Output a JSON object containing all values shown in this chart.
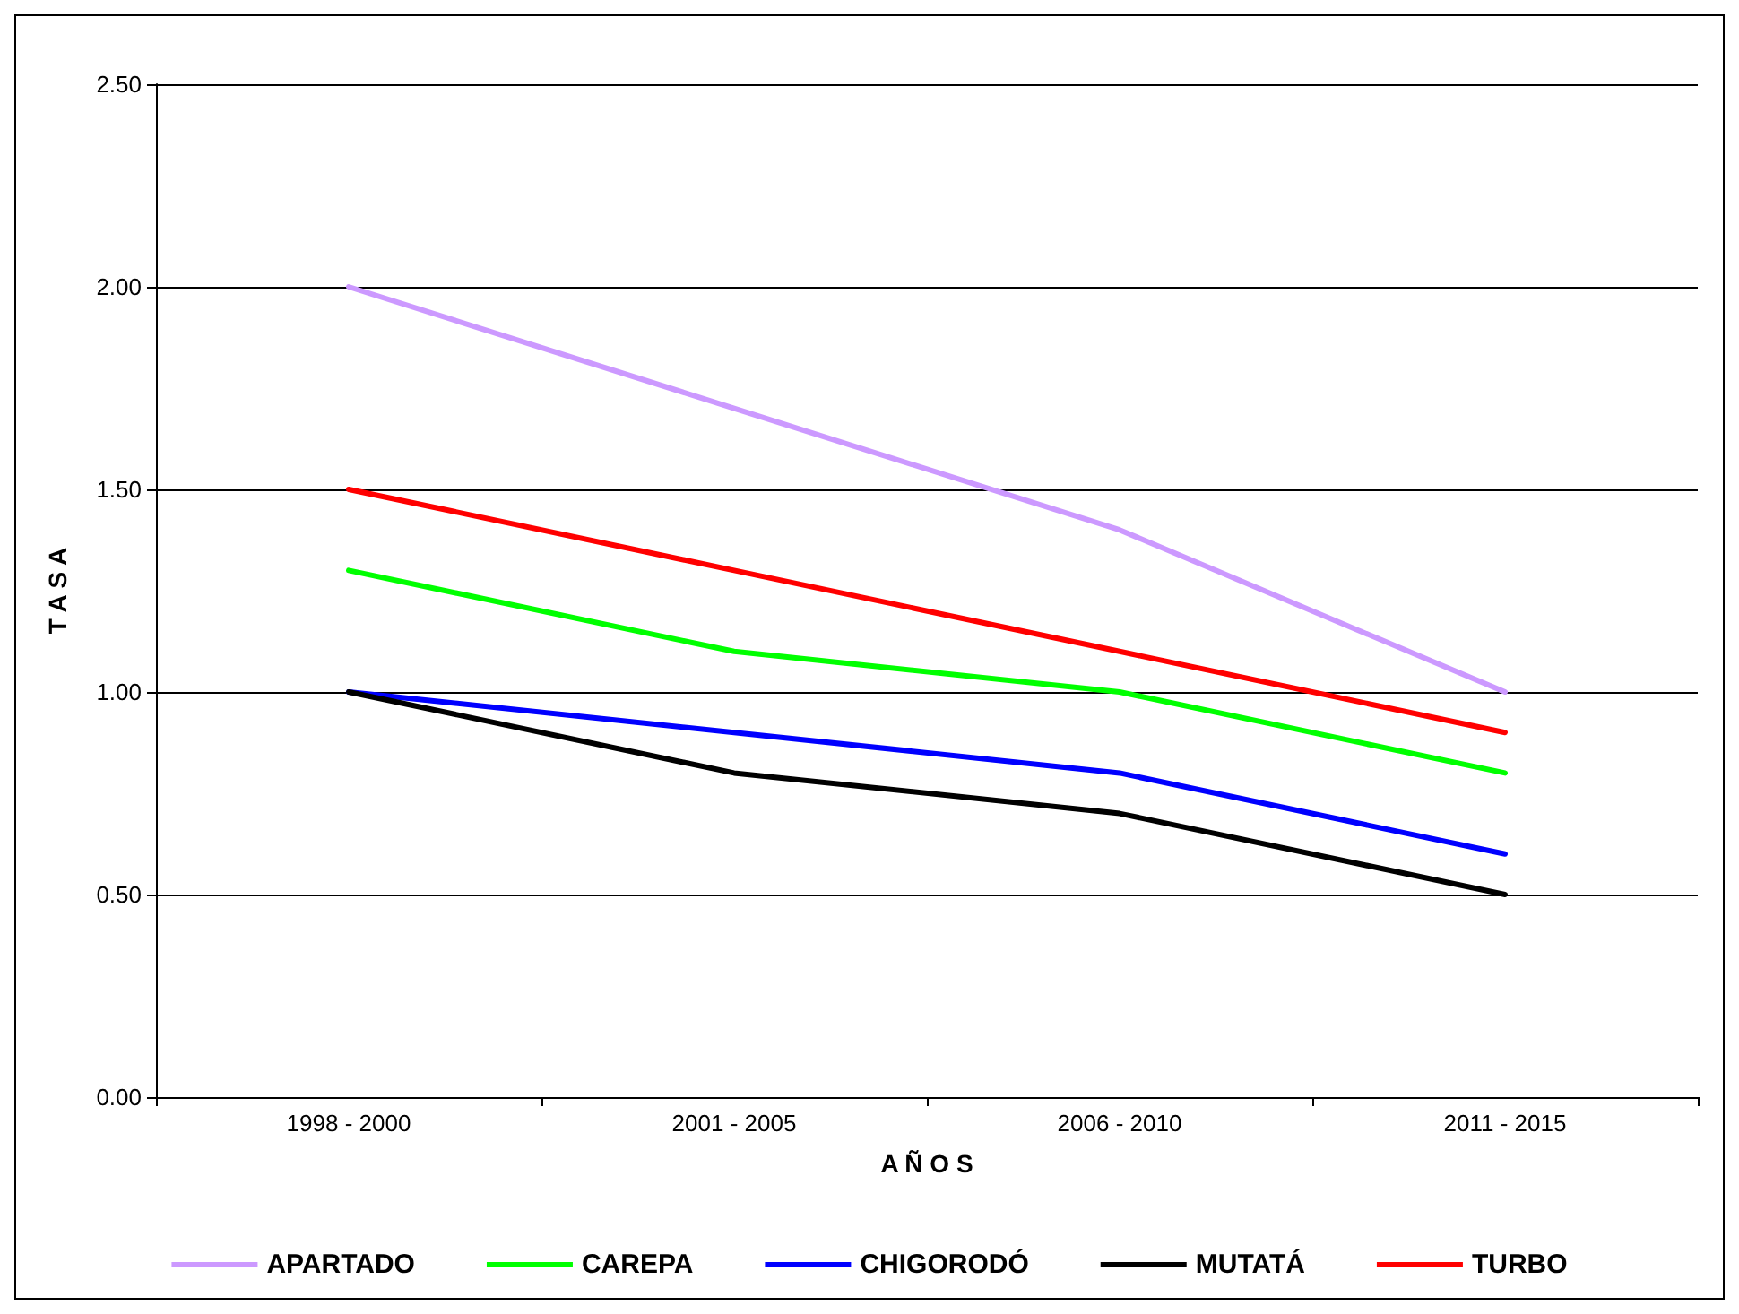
{
  "chart_data": {
    "type": "line",
    "xlabel": "A Ñ O S",
    "ylabel": "T A S A",
    "categories": [
      "1998 - 2000",
      "2001 - 2005",
      "2006 - 2010",
      "2011 - 2015"
    ],
    "series": [
      {
        "name": "APARTADO",
        "color": "#cc99ff",
        "values": [
          2.0,
          1.7,
          1.4,
          1.0
        ]
      },
      {
        "name": "CAREPA",
        "color": "#00ff00",
        "values": [
          1.3,
          1.1,
          1.0,
          0.8
        ]
      },
      {
        "name": "CHIGORODÓ",
        "color": "#0000ff",
        "values": [
          1.0,
          0.9,
          0.8,
          0.6
        ]
      },
      {
        "name": "MUTATÁ",
        "color": "#000000",
        "values": [
          1.0,
          0.8,
          0.7,
          0.5
        ]
      },
      {
        "name": "TURBO",
        "color": "#ff0000",
        "values": [
          1.5,
          1.3,
          1.1,
          0.9
        ]
      }
    ],
    "ylim": [
      0,
      2.5
    ],
    "yticks": [
      {
        "value": 0,
        "label": "0.00"
      },
      {
        "value": 0.5,
        "label": "0.50"
      },
      {
        "value": 1,
        "label": "1.00"
      },
      {
        "value": 1.5,
        "label": "1.50"
      },
      {
        "value": 2,
        "label": "2.00"
      },
      {
        "value": 2.5,
        "label": "2.50"
      }
    ],
    "grid": "y",
    "legend": "bottom",
    "marker": "none",
    "line_style": "solid"
  }
}
